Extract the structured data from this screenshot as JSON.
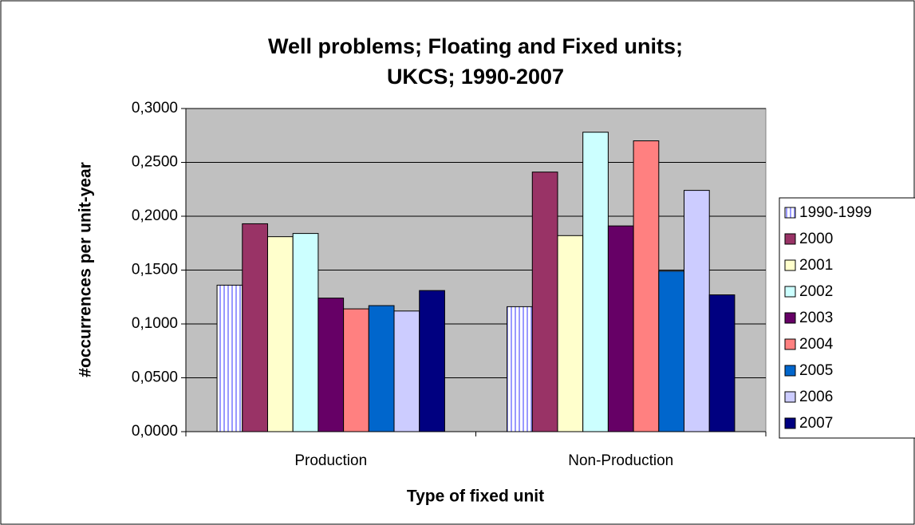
{
  "chart_data": {
    "type": "bar",
    "title": [
      "Well problems; Floating and Fixed units;",
      "UKCS; 1990-2007"
    ],
    "x_label": "Type of fixed unit",
    "y_label": "#occurrences per unit-year",
    "categories": [
      "Production",
      "Non-Production"
    ],
    "series": [
      {
        "name": "1990-1999",
        "color": "#9999ff",
        "pattern": "vertical-lines",
        "values": [
          0.136,
          0.116
        ]
      },
      {
        "name": "2000",
        "color": "#993366",
        "values": [
          0.193,
          0.241
        ]
      },
      {
        "name": "2001",
        "color": "#ffffcc",
        "values": [
          0.181,
          0.182
        ]
      },
      {
        "name": "2002",
        "color": "#ccffff",
        "values": [
          0.184,
          0.278
        ]
      },
      {
        "name": "2003",
        "color": "#660066",
        "values": [
          0.124,
          0.191
        ]
      },
      {
        "name": "2004",
        "color": "#ff8080",
        "values": [
          0.114,
          0.27
        ]
      },
      {
        "name": "2005",
        "color": "#0066cc",
        "values": [
          0.117,
          0.149
        ]
      },
      {
        "name": "2006",
        "color": "#ccccff",
        "values": [
          0.112,
          0.224
        ]
      },
      {
        "name": "2007",
        "color": "#000080",
        "values": [
          0.131,
          0.127
        ]
      }
    ],
    "ylim": [
      0,
      0.3
    ],
    "yticks": [
      {
        "value": 0,
        "label": "0,0000"
      },
      {
        "value": 0.05,
        "label": "0,0500"
      },
      {
        "value": 0.1,
        "label": "0,1000"
      },
      {
        "value": 0.15,
        "label": "0,1500"
      },
      {
        "value": 0.2,
        "label": "0,2000"
      },
      {
        "value": 0.25,
        "label": "0,2500"
      },
      {
        "value": 0.3,
        "label": "0,3000"
      }
    ],
    "grid": true,
    "plot_background": "#c0c0c0",
    "legend": "right"
  }
}
